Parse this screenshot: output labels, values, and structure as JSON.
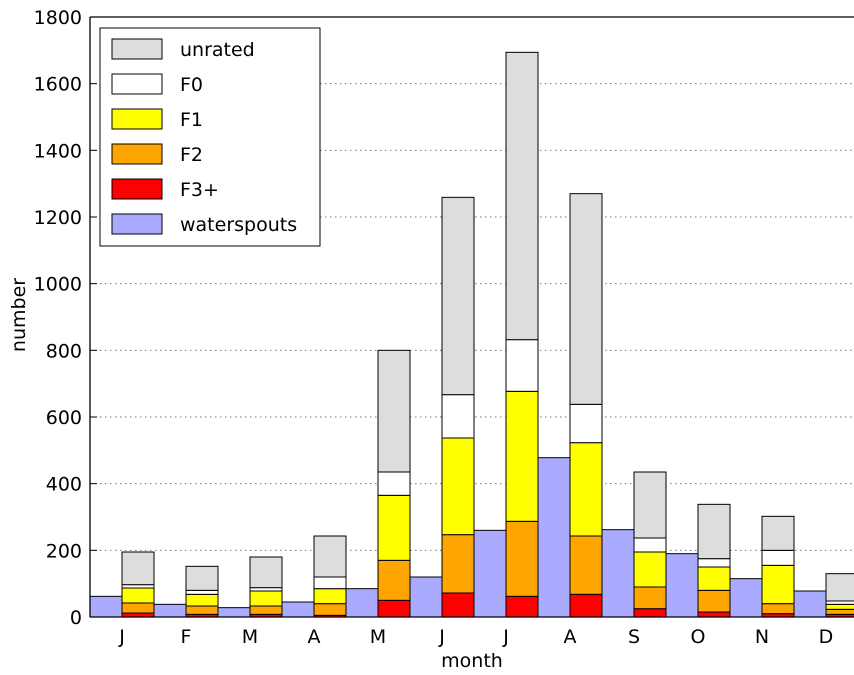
{
  "chart_data": {
    "type": "bar",
    "stacked": true,
    "title": "",
    "xlabel": "month",
    "ylabel": "number",
    "ylim": [
      0,
      1800
    ],
    "yticks": [
      0,
      200,
      400,
      600,
      800,
      1000,
      1200,
      1400,
      1600,
      1800
    ],
    "grid": "horizontal dotted",
    "legend_placement": "top-left",
    "categories": [
      "J",
      "F",
      "M",
      "A",
      "M",
      "J",
      "J",
      "A",
      "S",
      "O",
      "N",
      "D"
    ],
    "tornado_series": [
      {
        "name": "F3+",
        "color": "#ff0000",
        "values": [
          12,
          8,
          8,
          5,
          50,
          72,
          62,
          68,
          25,
          15,
          10,
          8
        ]
      },
      {
        "name": "F2",
        "color": "#ffa500",
        "values": [
          30,
          25,
          25,
          35,
          120,
          175,
          225,
          175,
          65,
          65,
          30,
          15
        ]
      },
      {
        "name": "F1",
        "color": "#ffff00",
        "values": [
          45,
          35,
          45,
          45,
          195,
          290,
          390,
          280,
          105,
          70,
          115,
          15
        ]
      },
      {
        "name": "F0",
        "color": "#ffffff",
        "values": [
          10,
          12,
          10,
          35,
          70,
          130,
          155,
          115,
          42,
          25,
          45,
          10
        ]
      },
      {
        "name": "unrated",
        "color": "#dddddd",
        "values": [
          98,
          72,
          92,
          123,
          365,
          592,
          862,
          632,
          198,
          163,
          102,
          82
        ]
      }
    ],
    "waterspouts": {
      "name": "waterspouts",
      "color": "#aaaaff",
      "values": [
        62,
        38,
        28,
        45,
        85,
        120,
        260,
        478,
        262,
        190,
        115,
        78
      ]
    },
    "legend_order": [
      "unrated",
      "F0",
      "F1",
      "F2",
      "F3+",
      "waterspouts"
    ]
  }
}
